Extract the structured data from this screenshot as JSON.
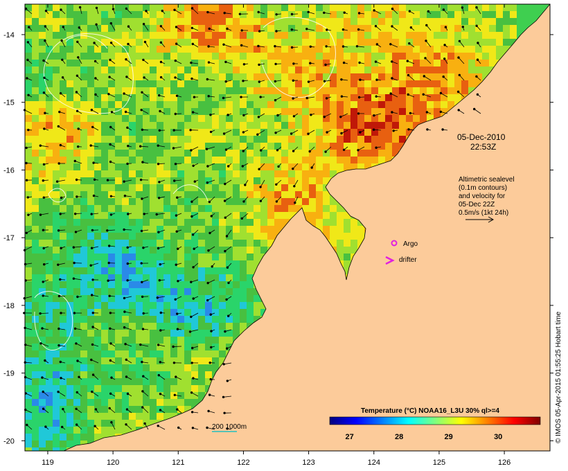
{
  "map": {
    "lon_range": [
      118.65,
      126.7
    ],
    "lat_range": [
      -20.15,
      -13.55
    ],
    "lon_ticks": [
      119,
      120,
      121,
      122,
      123,
      124,
      125,
      126
    ],
    "lat_ticks": [
      -14,
      -15,
      -16,
      -17,
      -18,
      -19,
      -20
    ],
    "land_color": "#fccb9a"
  },
  "annotations": {
    "date_line1": "05-Dec-2010",
    "date_line2": "22:53Z",
    "altimetry_lines": [
      "Altimetric sealevel",
      "(0.1m contours)",
      "and velocity for",
      "05-Dec 22Z",
      "0.5m/s (1kt 24h)"
    ],
    "argo_label": "Argo",
    "drifter_label": "drifter",
    "argo_color": "#e020e0",
    "drifter_color": "#e020e0",
    "depth_label": "200  1000m",
    "depth_color": "#20c0c0"
  },
  "colorbar": {
    "title": "Temperature (°C) NOAA16_L3U 30% ql>=4",
    "ticks": [
      27,
      28,
      29,
      30
    ],
    "range": [
      26.6,
      30.85
    ],
    "colors": [
      "#00007f",
      "#0000ff",
      "#007fff",
      "#00ffff",
      "#7fff7f",
      "#ffff00",
      "#ff7f00",
      "#ff0000",
      "#7f0000"
    ]
  },
  "credit": "© IMOS 05-Apr-2015 01:55:25 Hobart time"
}
